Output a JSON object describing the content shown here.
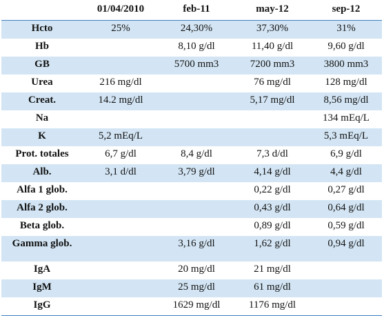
{
  "table": {
    "corner": "",
    "columns": [
      "01/04/2010",
      "feb-11",
      "may-12",
      "sep-12"
    ],
    "rows": [
      {
        "label": "Hcto",
        "values": [
          "25%",
          "24,30%",
          "37,30%",
          "31%"
        ]
      },
      {
        "label": "Hb",
        "values": [
          "",
          "8,10 g/dl",
          "11,40 g/dl",
          "9,60 g/dl"
        ]
      },
      {
        "label": "GB",
        "values": [
          "",
          "5700 mm3",
          "7200 mm3",
          "3800 mm3"
        ]
      },
      {
        "label": "Urea",
        "values": [
          "216 mg/dl",
          "",
          "76 mg/dl",
          "128 mg/dl"
        ]
      },
      {
        "label": "Creat.",
        "values": [
          "14.2 mg/dl",
          "",
          "5,17 mg/dl",
          "8,56 mg/dl"
        ]
      },
      {
        "label": "Na",
        "values": [
          "",
          "",
          "",
          "134 mEq/L"
        ]
      },
      {
        "label": "K",
        "values": [
          "5,2 mEq/L",
          "",
          "",
          "5,3 mEq/L"
        ]
      },
      {
        "label": "Prot. totales",
        "values": [
          "6,7 g/dl",
          "8,4 g/dl",
          "7,3 d/dl",
          "6,9 g/dl"
        ]
      },
      {
        "label": "Alb.",
        "values": [
          "3,1 d/dl",
          "3,79 g/dl",
          "4,14 g/dl",
          "4,4 g/dl"
        ]
      },
      {
        "label": "Alfa 1 glob.",
        "values": [
          "",
          "",
          "0,22 g/dl",
          "0,27 g/dl"
        ]
      },
      {
        "label": "Alfa 2 glob.",
        "values": [
          "",
          "",
          "0,43 g/dl",
          "0,64 g/dl"
        ]
      },
      {
        "label": "Beta glob.",
        "values": [
          "",
          "",
          "0,89 g/dl",
          "0,59 g/dl"
        ]
      },
      {
        "label": "Gamma glob.",
        "values": [
          "",
          "3,16 g/dl",
          "1,62 g/dl",
          "0,94 g/dl"
        ]
      },
      {
        "label": "IgA",
        "values": [
          "",
          "20 mg/dl",
          "21 mg/dl",
          ""
        ]
      },
      {
        "label": "IgM",
        "values": [
          "",
          "25 mg/dl",
          "61 mg/dl",
          ""
        ]
      },
      {
        "label": "IgG",
        "values": [
          "",
          "1629 mg/dl",
          "1176 mg/dl",
          ""
        ]
      }
    ]
  },
  "colors": {
    "band": "#d3e5f4",
    "rule": "#3f7fbf"
  }
}
